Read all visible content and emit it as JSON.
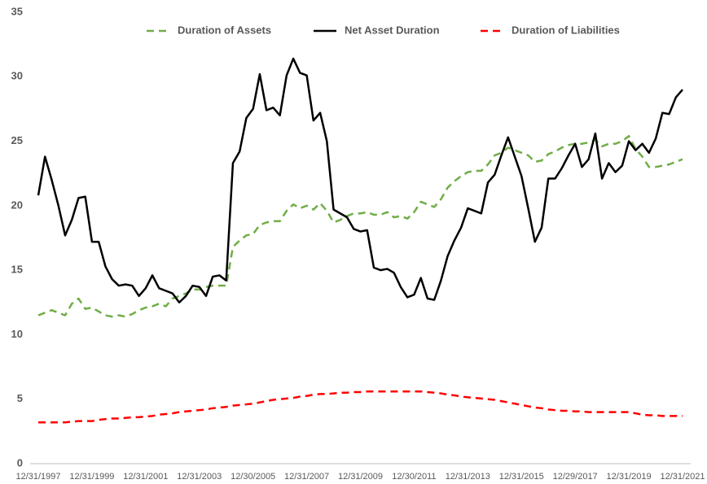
{
  "chart_data": {
    "type": "line",
    "categories": [
      "12/31/1997",
      null,
      null,
      null,
      null,
      null,
      null,
      null,
      "12/31/1999",
      null,
      null,
      null,
      null,
      null,
      null,
      null,
      "12/31/2001",
      null,
      null,
      null,
      null,
      null,
      null,
      null,
      "12/31/2003",
      null,
      null,
      null,
      null,
      null,
      null,
      null,
      "12/30/2005",
      null,
      null,
      null,
      null,
      null,
      null,
      null,
      "12/31/2007",
      null,
      null,
      null,
      null,
      null,
      null,
      null,
      "12/31/2009",
      null,
      null,
      null,
      null,
      null,
      null,
      null,
      "12/30/2011",
      null,
      null,
      null,
      null,
      null,
      null,
      null,
      "12/31/2013",
      null,
      null,
      null,
      null,
      null,
      null,
      null,
      "12/31/2015",
      null,
      null,
      null,
      null,
      null,
      null,
      null,
      "12/29/2017",
      null,
      null,
      null,
      null,
      null,
      null,
      null,
      "12/31/2019",
      null,
      null,
      null,
      null,
      null,
      null,
      null,
      "12/31/2021"
    ],
    "series": [
      {
        "name": "Duration of Assets",
        "color": "#70ad47",
        "dashed": true,
        "values": [
          11.5,
          11.7,
          11.9,
          11.7,
          11.5,
          12.4,
          12.8,
          12,
          12.1,
          11.8,
          11.5,
          11.4,
          11.5,
          11.4,
          11.6,
          11.9,
          12.1,
          12.2,
          12.4,
          12.2,
          12.8,
          13,
          13.2,
          13.5,
          13.5,
          13.7,
          13.8,
          13.8,
          13.8,
          16.8,
          17.3,
          17.7,
          17.8,
          18.5,
          18.7,
          18.8,
          18.8,
          19.6,
          20.1,
          19.8,
          20,
          19.7,
          20.2,
          19.6,
          18.7,
          18.9,
          19.2,
          19.4,
          19.4,
          19.5,
          19.3,
          19.3,
          19.5,
          19.1,
          19.2,
          19,
          19.5,
          20.3,
          20.1,
          19.9,
          20.5,
          21.4,
          21.9,
          22.3,
          22.6,
          22.7,
          22.7,
          23.2,
          23.9,
          24.1,
          24.5,
          24.3,
          24.1,
          23.9,
          23.4,
          23.5,
          24,
          24.2,
          24.5,
          24.7,
          24.8,
          24.8,
          24.9,
          25.1,
          24.6,
          24.8,
          24.8,
          25,
          25.4,
          24.4,
          23.8,
          23,
          23,
          23.1,
          23.2,
          23.4,
          23.6
        ]
      },
      {
        "name": "Net Asset Duration",
        "color": "#000000",
        "dashed": false,
        "values": [
          20.8,
          23.8,
          22,
          20,
          17.7,
          18.9,
          20.6,
          20.7,
          17.2,
          17.2,
          15.3,
          14.3,
          13.8,
          13.9,
          13.8,
          13,
          13.6,
          14.6,
          13.6,
          13.4,
          13.2,
          12.5,
          13,
          13.8,
          13.7,
          13,
          14.5,
          14.6,
          14.2,
          23.3,
          24.2,
          26.8,
          27.5,
          30.2,
          27.4,
          27.6,
          27,
          30.1,
          31.4,
          30.3,
          30.1,
          26.6,
          27.2,
          25,
          19.7,
          19.4,
          19.1,
          18.2,
          18,
          18.1,
          15.2,
          15,
          15.1,
          14.8,
          13.7,
          12.9,
          13.1,
          14.4,
          12.8,
          12.7,
          14.2,
          16.1,
          17.3,
          18.3,
          19.8,
          19.6,
          19.4,
          21.8,
          22.4,
          23.9,
          25.3,
          23.8,
          22.3,
          19.8,
          17.2,
          18.3,
          22.1,
          22.1,
          22.9,
          23.9,
          24.8,
          23,
          23.6,
          25.6,
          22.1,
          23.3,
          22.6,
          23.1,
          25,
          24.3,
          24.8,
          24.1,
          25.2,
          27.2,
          27.1,
          28.4,
          29
        ]
      },
      {
        "name": "Duration of Liabilities",
        "color": "#ff0000",
        "dashed": true,
        "values": [
          3.2,
          3.2,
          3.2,
          3.2,
          3.2,
          3.25,
          3.3,
          3.3,
          3.3,
          3.4,
          3.45,
          3.5,
          3.5,
          3.55,
          3.6,
          3.6,
          3.65,
          3.7,
          3.8,
          3.85,
          3.9,
          4,
          4.05,
          4.1,
          4.15,
          4.2,
          4.3,
          4.35,
          4.4,
          4.5,
          4.55,
          4.6,
          4.65,
          4.75,
          4.85,
          4.95,
          5,
          5.05,
          5.1,
          5.2,
          5.25,
          5.35,
          5.4,
          5.4,
          5.45,
          5.5,
          5.5,
          5.55,
          5.55,
          5.6,
          5.6,
          5.6,
          5.6,
          5.6,
          5.6,
          5.6,
          5.6,
          5.6,
          5.55,
          5.5,
          5.45,
          5.35,
          5.3,
          5.2,
          5.15,
          5.1,
          5.05,
          5,
          4.95,
          4.85,
          4.75,
          4.65,
          4.55,
          4.45,
          4.35,
          4.3,
          4.2,
          4.15,
          4.1,
          4.1,
          4.05,
          4.05,
          4,
          4,
          4,
          4,
          4,
          4,
          4,
          3.9,
          3.8,
          3.75,
          3.75,
          3.7,
          3.7,
          3.7,
          3.7
        ]
      }
    ],
    "ylim": [
      0,
      35
    ],
    "yticks": [
      0,
      5,
      10,
      15,
      20,
      25,
      30,
      35
    ],
    "grid": false,
    "legend": "top"
  }
}
